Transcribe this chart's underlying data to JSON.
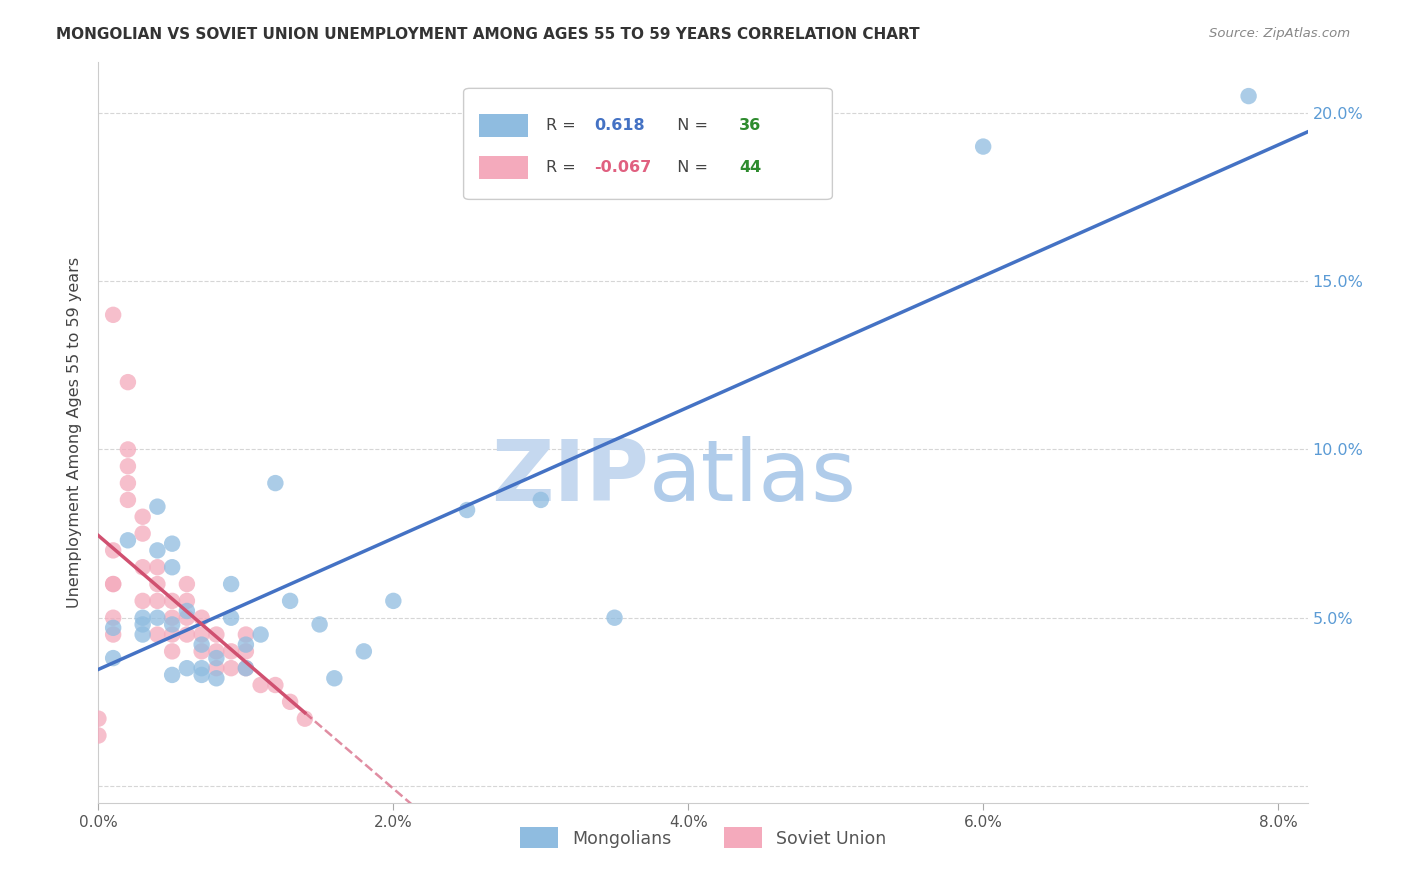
{
  "title": "MONGOLIAN VS SOVIET UNION UNEMPLOYMENT AMONG AGES 55 TO 59 YEARS CORRELATION CHART",
  "source": "Source: ZipAtlas.com",
  "ylabel": "Unemployment Among Ages 55 to 59 years",
  "xlim": [
    0.0,
    0.082
  ],
  "ylim": [
    -0.005,
    0.215
  ],
  "x_ticks": [
    0.0,
    0.02,
    0.04,
    0.06,
    0.08
  ],
  "x_tick_labels": [
    "0.0%",
    "2.0%",
    "4.0%",
    "6.0%",
    "8.0%"
  ],
  "y_ticks": [
    0.0,
    0.05,
    0.1,
    0.15,
    0.2
  ],
  "y_tick_labels": [
    "",
    "5.0%",
    "10.0%",
    "15.0%",
    "20.0%"
  ],
  "mongolian_R": "0.618",
  "mongolian_N": "36",
  "soviet_R": "-0.067",
  "soviet_N": "44",
  "mongolian_scatter_color": "#8FBCE0",
  "mongolian_line_color": "#4472C4",
  "soviet_scatter_color": "#F4AABC",
  "soviet_line_color": "#D05070",
  "watermark_zip_color": "#C5D8EF",
  "watermark_atlas_color": "#B0CCEA",
  "background_color": "#FFFFFF",
  "grid_color": "#CCCCCC",
  "title_color": "#333333",
  "source_color": "#888888",
  "ytick_color": "#5B9BD5",
  "xtick_color": "#555555",
  "ylabel_color": "#444444",
  "legend_label_color": "#555555",
  "legend_R_val_color_mongolian": "#4472C4",
  "legend_R_val_color_soviet": "#E06080",
  "legend_N_val_color": "#2E8B2E",
  "mongolian_x": [
    0.001,
    0.001,
    0.002,
    0.003,
    0.003,
    0.003,
    0.004,
    0.004,
    0.005,
    0.005,
    0.005,
    0.006,
    0.007,
    0.007,
    0.008,
    0.008,
    0.009,
    0.009,
    0.01,
    0.01,
    0.011,
    0.012,
    0.013,
    0.015,
    0.016,
    0.018,
    0.02,
    0.025,
    0.03,
    0.035,
    0.004,
    0.005,
    0.006,
    0.007,
    0.06,
    0.078
  ],
  "mongolian_y": [
    0.047,
    0.038,
    0.073,
    0.05,
    0.048,
    0.045,
    0.083,
    0.07,
    0.072,
    0.065,
    0.048,
    0.035,
    0.035,
    0.042,
    0.038,
    0.032,
    0.05,
    0.06,
    0.035,
    0.042,
    0.045,
    0.09,
    0.055,
    0.048,
    0.032,
    0.04,
    0.055,
    0.082,
    0.085,
    0.05,
    0.05,
    0.033,
    0.052,
    0.033,
    0.19,
    0.205
  ],
  "soviet_x": [
    0.0,
    0.0,
    0.001,
    0.001,
    0.001,
    0.001,
    0.001,
    0.001,
    0.002,
    0.002,
    0.002,
    0.002,
    0.002,
    0.003,
    0.003,
    0.003,
    0.003,
    0.004,
    0.004,
    0.004,
    0.004,
    0.005,
    0.005,
    0.005,
    0.005,
    0.006,
    0.006,
    0.006,
    0.006,
    0.007,
    0.007,
    0.007,
    0.008,
    0.008,
    0.008,
    0.009,
    0.009,
    0.01,
    0.01,
    0.01,
    0.011,
    0.012,
    0.013,
    0.014
  ],
  "soviet_y": [
    0.015,
    0.02,
    0.05,
    0.06,
    0.045,
    0.07,
    0.06,
    0.14,
    0.1,
    0.095,
    0.085,
    0.09,
    0.12,
    0.08,
    0.075,
    0.065,
    0.055,
    0.055,
    0.065,
    0.06,
    0.045,
    0.045,
    0.055,
    0.05,
    0.04,
    0.055,
    0.06,
    0.045,
    0.05,
    0.045,
    0.04,
    0.05,
    0.045,
    0.04,
    0.035,
    0.04,
    0.035,
    0.045,
    0.035,
    0.04,
    0.03,
    0.03,
    0.025,
    0.02
  ]
}
